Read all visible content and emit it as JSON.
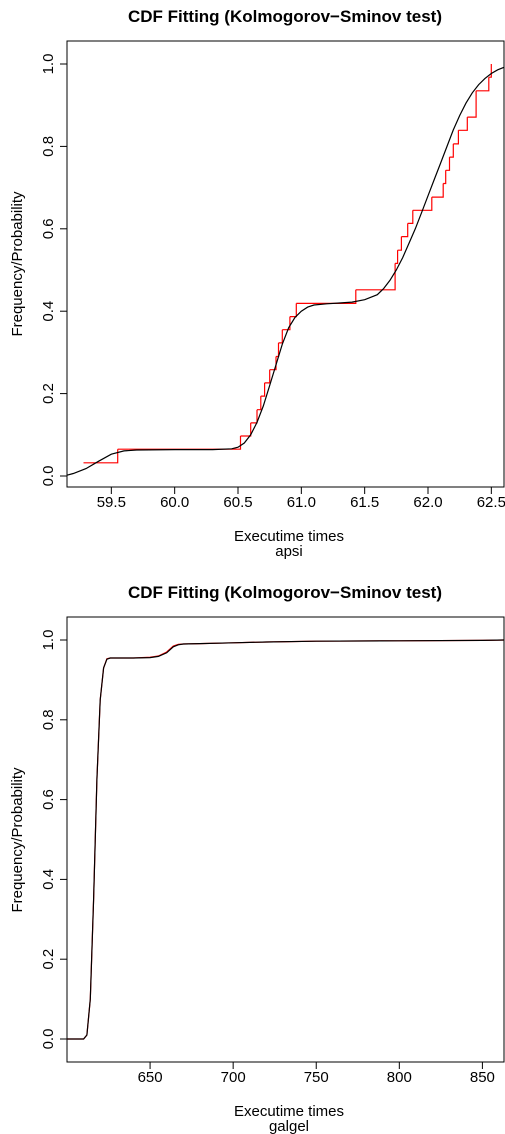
{
  "chart_data": [
    {
      "type": "line",
      "title": "CDF Fitting (Kolmogorov−Sminov test)",
      "xlabel": "Executime times",
      "sublabel": "apsi",
      "ylabel": "Frequency/Probability",
      "xlim": [
        59.15,
        62.6
      ],
      "ylim": [
        0,
        1.0
      ],
      "xticks": [
        59.5,
        60.0,
        60.5,
        61.0,
        61.5,
        62.0,
        62.5
      ],
      "xtick_labels": [
        "59.5",
        "60.0",
        "60.5",
        "61.0",
        "61.5",
        "62.0",
        "62.5"
      ],
      "yticks": [
        0.0,
        0.2,
        0.4,
        0.6,
        0.8,
        1.0
      ],
      "ytick_labels": [
        "0.0",
        "0.2",
        "0.4",
        "0.6",
        "0.8",
        "1.0"
      ],
      "series": [
        {
          "color": "#ff0000",
          "kind": "step",
          "x": [
            59.28,
            59.55,
            60.52,
            60.6,
            60.65,
            60.68,
            60.71,
            60.75,
            60.8,
            60.82,
            60.85,
            60.91,
            60.96,
            61.02,
            61.1,
            61.43,
            61.74,
            61.76,
            61.79,
            61.84,
            61.88,
            62.03,
            62.12,
            62.14,
            62.17,
            62.2,
            62.24,
            62.31,
            62.38,
            62.48
          ],
          "y": [
            0.032,
            0.065,
            0.097,
            0.129,
            0.161,
            0.194,
            0.226,
            0.258,
            0.29,
            0.323,
            0.355,
            0.387,
            0.419,
            0.419,
            0.419,
            0.452,
            0.516,
            0.548,
            0.581,
            0.613,
            0.645,
            0.677,
            0.71,
            0.742,
            0.774,
            0.806,
            0.839,
            0.871,
            0.935,
            0.968
          ],
          "x_end": 62.5,
          "y_end": 1.0
        },
        {
          "color": "#000000",
          "kind": "curve",
          "x": [
            59.15,
            59.2,
            59.3,
            59.4,
            59.5,
            59.6,
            59.7,
            60.0,
            60.3,
            60.45,
            60.5,
            60.55,
            60.6,
            60.65,
            60.7,
            60.75,
            60.8,
            60.85,
            60.9,
            60.95,
            61.0,
            61.05,
            61.1,
            61.2,
            61.3,
            61.4,
            61.5,
            61.6,
            61.65,
            61.7,
            61.75,
            61.8,
            61.85,
            61.9,
            61.95,
            62.0,
            62.05,
            62.1,
            62.15,
            62.2,
            62.25,
            62.3,
            62.35,
            62.4,
            62.45,
            62.5,
            62.55,
            62.6
          ],
          "y": [
            0.002,
            0.006,
            0.018,
            0.036,
            0.053,
            0.061,
            0.063,
            0.064,
            0.064,
            0.066,
            0.07,
            0.08,
            0.1,
            0.13,
            0.17,
            0.22,
            0.27,
            0.32,
            0.36,
            0.385,
            0.4,
            0.41,
            0.415,
            0.418,
            0.42,
            0.422,
            0.428,
            0.44,
            0.455,
            0.475,
            0.5,
            0.53,
            0.565,
            0.6,
            0.64,
            0.68,
            0.72,
            0.76,
            0.8,
            0.84,
            0.875,
            0.905,
            0.93,
            0.95,
            0.965,
            0.977,
            0.986,
            0.992
          ]
        }
      ]
    },
    {
      "type": "line",
      "title": "CDF Fitting (Kolmogorov−Sminov test)",
      "xlabel": "Executime times",
      "sublabel": "galgel",
      "ylabel": "Frequency/Probability",
      "xlim": [
        600,
        863
      ],
      "ylim": [
        0,
        1.0
      ],
      "xticks": [
        650,
        700,
        750,
        800,
        850
      ],
      "xtick_labels": [
        "650",
        "700",
        "750",
        "800",
        "850"
      ],
      "yticks": [
        0.0,
        0.2,
        0.4,
        0.6,
        0.8,
        1.0
      ],
      "ytick_labels": [
        "0.0",
        "0.2",
        "0.4",
        "0.6",
        "0.8",
        "1.0"
      ],
      "series": [
        {
          "color": "#ff0000",
          "kind": "curve",
          "x": [
            600,
            610,
            612,
            614,
            616,
            618,
            620,
            622,
            624,
            626,
            630,
            640,
            650,
            655,
            660,
            664,
            667,
            670,
            680,
            700,
            720,
            750,
            800,
            850,
            863
          ],
          "y": [
            0.0,
            0.0,
            0.01,
            0.1,
            0.35,
            0.65,
            0.85,
            0.93,
            0.953,
            0.955,
            0.955,
            0.955,
            0.957,
            0.96,
            0.97,
            0.985,
            0.989,
            0.99,
            0.991,
            0.993,
            0.995,
            0.997,
            0.998,
            0.999,
            1.0
          ]
        },
        {
          "color": "#000000",
          "kind": "curve",
          "x": [
            600,
            610,
            612,
            614,
            616,
            618,
            620,
            622,
            624,
            626,
            630,
            640,
            650,
            655,
            660,
            664,
            667,
            670,
            680,
            700,
            720,
            750,
            800,
            850,
            863
          ],
          "y": [
            0.0,
            0.0,
            0.01,
            0.1,
            0.35,
            0.65,
            0.85,
            0.93,
            0.952,
            0.955,
            0.955,
            0.955,
            0.956,
            0.959,
            0.968,
            0.983,
            0.988,
            0.99,
            0.991,
            0.993,
            0.995,
            0.997,
            0.998,
            0.999,
            1.0
          ]
        }
      ]
    }
  ]
}
